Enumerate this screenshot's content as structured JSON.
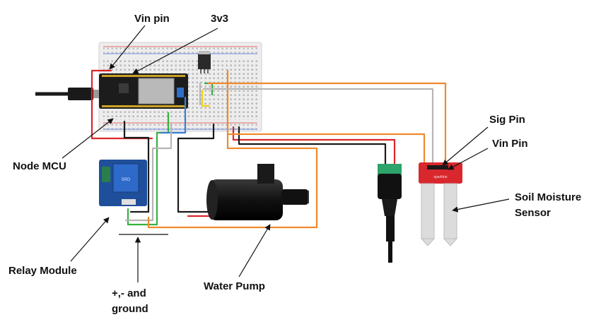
{
  "labels": {
    "vin_pin": "Vin pin",
    "v3v3": "3v3",
    "node_mcu": "Node MCU",
    "relay_module": "Relay Module",
    "ground_line1": "+,- and",
    "ground_line2": "ground",
    "water_pump": "Water Pump",
    "sig_pin": "Sig Pin",
    "vin_pin_sensor": "Vin Pin",
    "soil_line1": "Soil Moisture",
    "soil_line2": "Sensor"
  },
  "colors": {
    "red_wire": "#d9262b",
    "black_wire": "#1a1a1a",
    "orange_wire": "#ef8a2e",
    "gray_wire": "#b5b5b5",
    "green_wire": "#38b03f",
    "blue_wire": "#3a7fd6",
    "yellow_wire": "#f0d020",
    "breadboard": "#ededed",
    "relay_board": "#1f4f9a",
    "sensor_board": "#d8282e"
  },
  "icons": {
    "microcontroller": "nodemcu-board-icon",
    "relay": "relay-module-icon",
    "pump": "water-pump-icon",
    "jack": "dc-barrel-jack-icon",
    "sensor": "soil-moisture-sensor-icon"
  }
}
